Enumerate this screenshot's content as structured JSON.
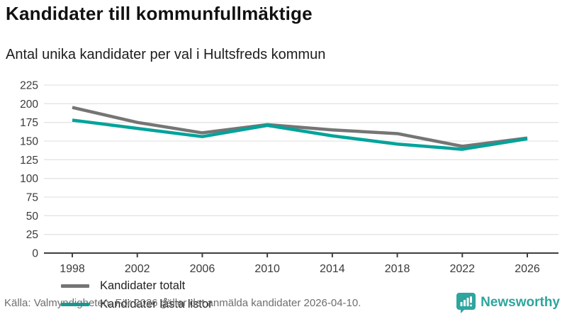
{
  "header": {
    "title": "Kandidater till kommunfullmäktige",
    "subtitle": "Antal unika kandidater per val i Hultsfreds kommun"
  },
  "chart_data": {
    "type": "line",
    "x": [
      1998,
      2002,
      2006,
      2010,
      2014,
      2018,
      2022,
      2026
    ],
    "series": [
      {
        "name": "Kandidater totalt",
        "color": "#757575",
        "values": [
          195,
          175,
          161,
          172,
          165,
          160,
          143,
          154
        ]
      },
      {
        "name": "Kandidater låsta listor",
        "color": "#00a39b",
        "values": [
          178,
          167,
          156,
          171,
          157,
          146,
          139,
          153
        ]
      }
    ],
    "ylim": [
      0,
      225
    ],
    "ytick_step": 25,
    "grid": true,
    "legend_position": "inside-bottom-left",
    "xlabel": "",
    "ylabel": ""
  },
  "colors": {
    "grid": "#e4e4e4",
    "axis": "#3f3f3f",
    "tick_text": "#3a3a3a",
    "brand": "#2ea59e"
  },
  "footer": {
    "source": "Källa: Valmyndigheten. För 2026 gäller det anmälda kandidater 2026-04-10.",
    "brand_name": "Newsworthy"
  }
}
